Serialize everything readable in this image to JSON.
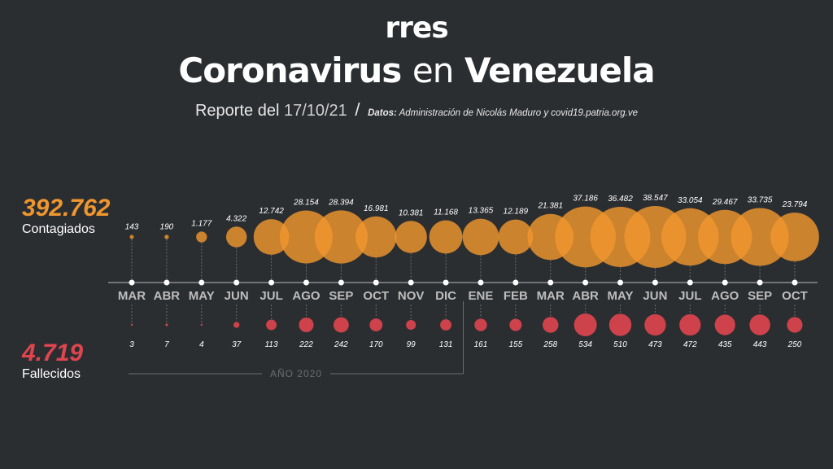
{
  "logo": "rres",
  "header": {
    "title_part1": "Coronavirus",
    "title_part2": "en",
    "title_part3": "Venezuela",
    "report_prefix": "Reporte del",
    "report_date": "17/10/21",
    "slash": "/",
    "source_label": "Datos:",
    "source_text": "Administración de Nicolás Maduro y covid19.patria.org.ve"
  },
  "totals": {
    "cases_value": "392.762",
    "cases_label": "Contagiados",
    "deaths_value": "4.719",
    "deaths_label": "Fallecidos"
  },
  "colors": {
    "background": "#2b2e31",
    "cases": "#f0962e",
    "deaths": "#e0454f",
    "axis": "#8a8d90"
  },
  "chart_data": {
    "type": "bubble",
    "year_label": "AÑO 2020",
    "categories": [
      "MAR",
      "ABR",
      "MAY",
      "JUN",
      "JUL",
      "AGO",
      "SEP",
      "OCT",
      "NOV",
      "DIC",
      "ENE",
      "FEB",
      "MAR",
      "ABR",
      "MAY",
      "JUN",
      "JUL",
      "AGO",
      "SEP",
      "OCT"
    ],
    "series": [
      {
        "name": "Contagiados",
        "values": [
          143,
          190,
          1177,
          4322,
          12742,
          28154,
          28394,
          16981,
          10381,
          11168,
          13365,
          12189,
          21381,
          37186,
          36482,
          38547,
          33054,
          29467,
          33735,
          23794
        ],
        "labels": [
          "143",
          "190",
          "1.177",
          "4.322",
          "12.742",
          "28.154",
          "28.394",
          "16.981",
          "10.381",
          "11.168",
          "13.365",
          "12.189",
          "21.381",
          "37.186",
          "36.482",
          "38.547",
          "33.054",
          "29.467",
          "33.735",
          "23.794"
        ]
      },
      {
        "name": "Fallecidos",
        "values": [
          3,
          7,
          4,
          37,
          113,
          222,
          242,
          170,
          99,
          131,
          161,
          155,
          258,
          534,
          510,
          473,
          472,
          435,
          443,
          250
        ],
        "labels": [
          "3",
          "7",
          "4",
          "37",
          "113",
          "222",
          "242",
          "170",
          "99",
          "131",
          "161",
          "155",
          "258",
          "534",
          "510",
          "473",
          "472",
          "435",
          "443",
          "250"
        ]
      }
    ]
  }
}
